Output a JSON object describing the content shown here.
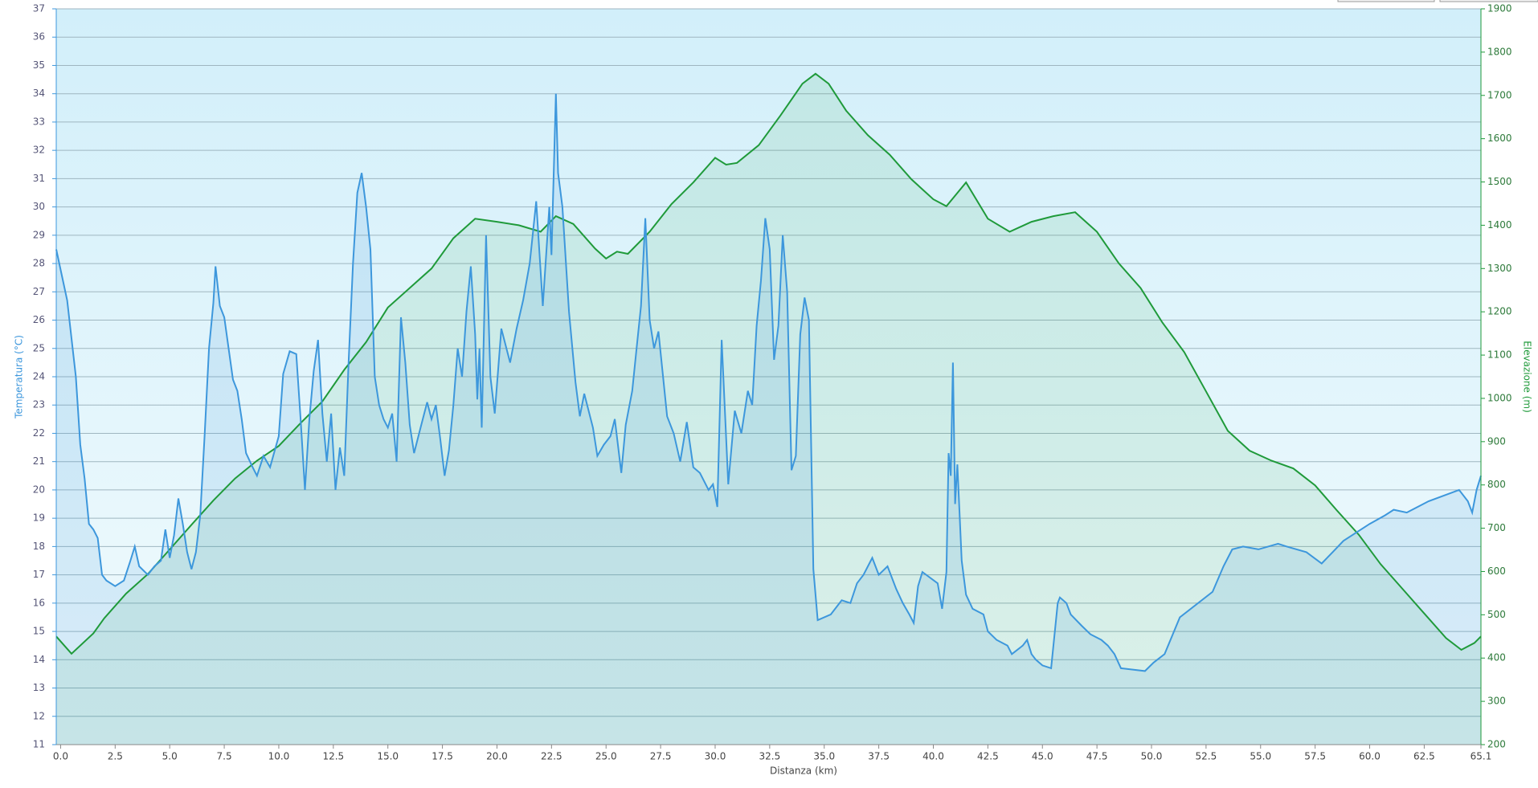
{
  "chart_data": {
    "type": "line",
    "x_label": "Distanza  (km)",
    "y_label": "Temperatura (°C)",
    "y2_label": "Elevazione (m)",
    "xlim": [
      -0.2,
      65.1
    ],
    "xticks": [
      {
        "value": 0,
        "label": "0.0"
      },
      2.5,
      {
        "value": 5,
        "label": "5.0"
      },
      7.5,
      {
        "value": 10,
        "label": "10.0"
      },
      12.5,
      {
        "value": 15,
        "label": "15.0"
      },
      17.5,
      {
        "value": 20,
        "label": "20.0"
      },
      22.5,
      {
        "value": 25,
        "label": "25.0"
      },
      27.5,
      {
        "value": 30,
        "label": "30.0"
      },
      32.5,
      {
        "value": 35,
        "label": "35.0"
      },
      37.5,
      {
        "value": 40,
        "label": "40.0"
      },
      42.5,
      {
        "value": 45,
        "label": "45.0"
      },
      47.5,
      {
        "value": 50,
        "label": "50.0"
      },
      52.5,
      {
        "value": 55,
        "label": "55.0"
      },
      57.5,
      {
        "value": 60,
        "label": "60.0"
      },
      62.5,
      65.1
    ],
    "ylim": [
      11,
      37
    ],
    "yticks": [
      11,
      12,
      13,
      14,
      15,
      16,
      17,
      18,
      19,
      20,
      21,
      22,
      23,
      24,
      25,
      26,
      27,
      28,
      29,
      30,
      31,
      32,
      33,
      34,
      35,
      36,
      37
    ],
    "y2lim": [
      200,
      1900
    ],
    "y2ticks": [
      200,
      300,
      400,
      500,
      600,
      700,
      800,
      900,
      1000,
      1100,
      1200,
      1300,
      1400,
      1500,
      1600,
      1700,
      1800,
      1900
    ],
    "grid": true,
    "series": [
      {
        "color": "#1f9a3a",
        "axis": "y2",
        "x": [
          -0.2,
          0.5,
          1.5,
          2,
          3,
          4,
          5,
          6,
          7,
          8,
          9,
          10,
          11,
          12,
          13,
          14,
          15,
          16,
          17,
          18,
          19,
          20,
          21,
          22,
          22.7,
          23.5,
          24.5,
          25,
          25.5,
          26,
          27,
          28,
          29,
          30,
          30.5,
          31,
          32,
          33,
          34,
          34.6,
          35.2,
          36,
          37,
          38,
          39,
          40,
          40.6,
          41.5,
          42.5,
          43.5,
          44.5,
          45.5,
          46.5,
          47.5,
          48.5,
          49.5,
          50.5,
          51.5,
          52.5,
          53.5,
          54.5,
          55.5,
          56.5,
          57.5,
          58.5,
          59.5,
          60.5,
          61.5,
          62.5,
          63.5,
          64.2,
          64.8,
          65.1
        ],
        "values": [
          450,
          410,
          457,
          492,
          549,
          594,
          651,
          708,
          764,
          815,
          856,
          890,
          943,
          993,
          1066,
          1130,
          1210,
          1255,
          1300,
          1370,
          1415,
          1408,
          1400,
          1385,
          1421,
          1403,
          1346,
          1323,
          1339,
          1334,
          1385,
          1449,
          1499,
          1556,
          1540,
          1544,
          1585,
          1654,
          1727,
          1750,
          1727,
          1665,
          1608,
          1563,
          1506,
          1460,
          1444,
          1499,
          1415,
          1385,
          1408,
          1421,
          1430,
          1385,
          1312,
          1255,
          1175,
          1107,
          1016,
          925,
          879,
          856,
          838,
          799,
          741,
          685,
          617,
          560,
          503,
          446,
          419,
          435,
          450
        ]
      },
      {
        "color": "#3d97dc",
        "axis": "y",
        "x": [
          -0.2,
          0.3,
          0.7,
          0.9,
          1.1,
          1.3,
          1.5,
          1.7,
          1.9,
          2.1,
          2.5,
          2.9,
          3.2,
          3.4,
          3.6,
          4.0,
          4.3,
          4.6,
          4.8,
          5.0,
          5.2,
          5.4,
          5.6,
          5.8,
          6.0,
          6.2,
          6.4,
          6.6,
          6.8,
          7.0,
          7.1,
          7.3,
          7.5,
          7.7,
          7.9,
          8.1,
          8.3,
          8.5,
          8.8,
          9.0,
          9.3,
          9.6,
          10.0,
          10.2,
          10.5,
          10.8,
          11.0,
          11.2,
          11.4,
          11.6,
          11.8,
          12.0,
          12.2,
          12.4,
          12.6,
          12.8,
          13.0,
          13.2,
          13.4,
          13.6,
          13.8,
          14.0,
          14.2,
          14.4,
          14.6,
          14.8,
          15.0,
          15.2,
          15.4,
          15.6,
          15.8,
          16.0,
          16.2,
          16.5,
          16.8,
          17.0,
          17.2,
          17.4,
          17.6,
          17.8,
          18.0,
          18.2,
          18.4,
          18.6,
          18.8,
          19.0,
          19.1,
          19.2,
          19.3,
          19.5,
          19.7,
          19.9,
          20.2,
          20.6,
          20.9,
          21.2,
          21.5,
          21.8,
          22.1,
          22.4,
          22.5,
          22.7,
          22.8,
          23.0,
          23.3,
          23.6,
          23.8,
          24.0,
          24.4,
          24.6,
          24.9,
          25.2,
          25.4,
          25.7,
          25.9,
          26.2,
          26.4,
          26.6,
          26.8,
          27.0,
          27.2,
          27.4,
          27.8,
          28.1,
          28.4,
          28.7,
          29.0,
          29.3,
          29.7,
          29.9,
          30.1,
          30.3,
          30.6,
          30.9,
          31.2,
          31.5,
          31.7,
          31.9,
          32.1,
          32.3,
          32.5,
          32.7,
          32.9,
          33.1,
          33.3,
          33.5,
          33.7,
          33.9,
          34.1,
          34.3,
          34.5,
          34.7,
          35.3,
          35.8,
          36.2,
          36.5,
          36.8,
          37.2,
          37.5,
          37.9,
          38.3,
          38.6,
          38.9,
          39.1,
          39.3,
          39.5,
          40.2,
          40.4,
          40.6,
          40.7,
          40.8,
          40.9,
          41.0,
          41.1,
          41.3,
          41.5,
          41.8,
          42.3,
          42.5,
          42.9,
          43.4,
          43.6,
          44.1,
          44.3,
          44.5,
          44.7,
          45.0,
          45.4,
          45.7,
          45.8,
          46.1,
          46.3,
          46.8,
          47.2,
          47.7,
          48.0,
          48.3,
          48.6,
          49.7,
          50.1,
          50.6,
          51.3,
          52.8,
          53.3,
          53.7,
          54.2,
          54.9,
          55.8,
          56.2,
          57.1,
          57.8,
          58.3,
          58.8,
          60.0,
          60.7,
          61.1,
          61.7,
          62.7,
          64.1,
          64.5,
          64.7,
          64.9,
          65.1
        ],
        "values": [
          28.5,
          26.7,
          24.0,
          21.6,
          20.4,
          18.8,
          18.6,
          18.3,
          17.0,
          16.8,
          16.6,
          16.8,
          17.5,
          18.0,
          17.3,
          17.0,
          17.3,
          17.5,
          18.6,
          17.6,
          18.4,
          19.7,
          18.8,
          17.8,
          17.2,
          17.8,
          19.1,
          21.9,
          25.0,
          26.6,
          27.9,
          26.5,
          26.1,
          25.0,
          23.9,
          23.5,
          22.5,
          21.3,
          20.8,
          20.5,
          21.2,
          20.8,
          21.9,
          24.1,
          24.9,
          24.8,
          22.5,
          20.0,
          22.5,
          24.2,
          25.3,
          22.7,
          21.0,
          22.7,
          20.0,
          21.5,
          20.5,
          24.5,
          28.0,
          30.5,
          31.2,
          30.0,
          28.5,
          24.0,
          23.0,
          22.5,
          22.2,
          22.7,
          21.0,
          26.1,
          24.5,
          22.3,
          21.3,
          22.2,
          23.1,
          22.5,
          23.0,
          21.8,
          20.5,
          21.4,
          23.0,
          25.0,
          24.0,
          26.3,
          27.9,
          25.5,
          23.2,
          25.0,
          22.2,
          29.0,
          24.0,
          22.7,
          25.7,
          24.5,
          25.7,
          26.7,
          28.0,
          30.2,
          26.5,
          30.0,
          28.3,
          34.0,
          31.2,
          30.0,
          26.3,
          23.8,
          22.6,
          23.4,
          22.2,
          21.2,
          21.6,
          21.9,
          22.5,
          20.6,
          22.3,
          23.5,
          25.0,
          26.5,
          29.6,
          26.0,
          25.0,
          25.6,
          22.6,
          22.0,
          21.0,
          22.4,
          20.8,
          20.6,
          20.0,
          20.2,
          19.4,
          25.3,
          20.2,
          22.8,
          22.0,
          23.5,
          23.0,
          25.8,
          27.4,
          29.6,
          28.5,
          24.6,
          25.8,
          29.0,
          27.0,
          20.7,
          21.2,
          25.5,
          26.8,
          26.0,
          17.2,
          15.4,
          15.6,
          16.1,
          16.0,
          16.7,
          17.0,
          17.6,
          17.0,
          17.3,
          16.5,
          16.0,
          15.6,
          15.3,
          16.6,
          17.1,
          16.7,
          15.8,
          17.1,
          21.3,
          20.5,
          24.5,
          19.5,
          20.9,
          17.5,
          16.3,
          15.8,
          15.6,
          15.0,
          14.7,
          14.5,
          14.2,
          14.5,
          14.7,
          14.2,
          14.0,
          13.8,
          13.7,
          16.0,
          16.2,
          16.0,
          15.6,
          15.2,
          14.9,
          14.7,
          14.5,
          14.2,
          13.7,
          13.6,
          13.9,
          14.2,
          15.5,
          16.4,
          17.3,
          17.9,
          18.0,
          17.9,
          18.1,
          18.0,
          17.8,
          17.4,
          17.8,
          18.2,
          18.8,
          19.1,
          19.3,
          19.2,
          19.6,
          20.0,
          19.6,
          19.2,
          20.0,
          20.5
        ]
      }
    ]
  }
}
